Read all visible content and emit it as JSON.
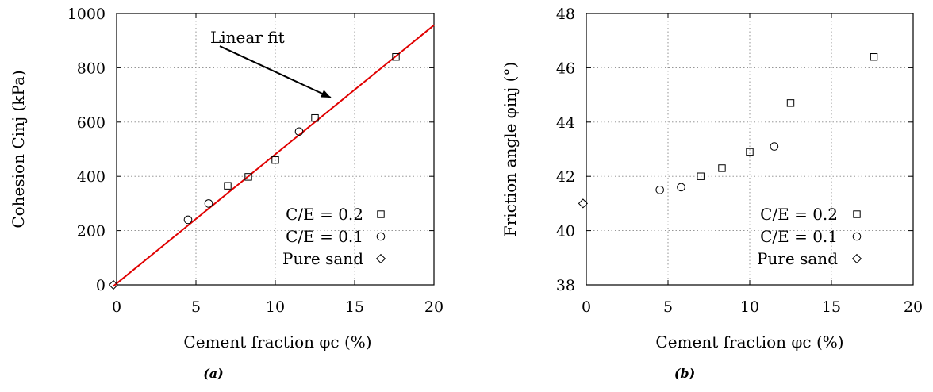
{
  "chart_data": [
    {
      "type": "scatter",
      "panel": "a",
      "caption": "(a)",
      "xlabel": "Cement fraction φc (%)",
      "ylabel": "Cohesion Cinj (kPa)",
      "xlim": [
        0,
        20
      ],
      "ylim": [
        0,
        1000
      ],
      "x_ticks": [
        "0",
        "5",
        "10",
        "15",
        "20"
      ],
      "y_ticks": [
        "0",
        "200",
        "400",
        "600",
        "800",
        "1000"
      ],
      "grid": true,
      "legend_position": "bottom-right",
      "series": [
        {
          "name": "C/E = 0.2",
          "marker": "square",
          "x": [
            7.0,
            8.3,
            10.0,
            12.5,
            17.6
          ],
          "y": [
            365,
            398,
            460,
            615,
            840
          ]
        },
        {
          "name": "C/E = 0.1",
          "marker": "circle",
          "x": [
            4.5,
            5.8,
            11.5
          ],
          "y": [
            240,
            300,
            565
          ]
        },
        {
          "name": "Pure sand",
          "marker": "diamond",
          "x": [
            -0.2
          ],
          "y": [
            0
          ]
        }
      ],
      "fit_line": {
        "name": "Linear fit",
        "color": "#e00000",
        "slope": 47.6,
        "intercept": 5
      },
      "annotations": [
        {
          "text": "Linear fit",
          "arrow_from": [
            6.5,
            880
          ],
          "arrow_to": [
            13.5,
            690
          ]
        }
      ]
    },
    {
      "type": "scatter",
      "panel": "b",
      "caption": "(b)",
      "xlabel": "Cement fraction φc (%)",
      "ylabel": "Friction angle φinj (°)",
      "xlim": [
        0,
        20
      ],
      "ylim": [
        38,
        48
      ],
      "x_ticks": [
        "0",
        "5",
        "10",
        "15",
        "20"
      ],
      "y_ticks": [
        "38",
        "40",
        "42",
        "44",
        "46",
        "48"
      ],
      "grid": true,
      "legend_position": "bottom-right",
      "series": [
        {
          "name": "C/E = 0.2",
          "marker": "square",
          "x": [
            7.0,
            8.3,
            10.0,
            12.5,
            17.6
          ],
          "y": [
            42.0,
            42.3,
            42.9,
            44.7,
            46.4
          ]
        },
        {
          "name": "C/E = 0.1",
          "marker": "circle",
          "x": [
            4.5,
            5.8,
            11.5
          ],
          "y": [
            41.5,
            41.6,
            43.1
          ]
        },
        {
          "name": "Pure sand",
          "marker": "diamond",
          "x": [
            -0.2
          ],
          "y": [
            41.0
          ]
        }
      ]
    }
  ]
}
